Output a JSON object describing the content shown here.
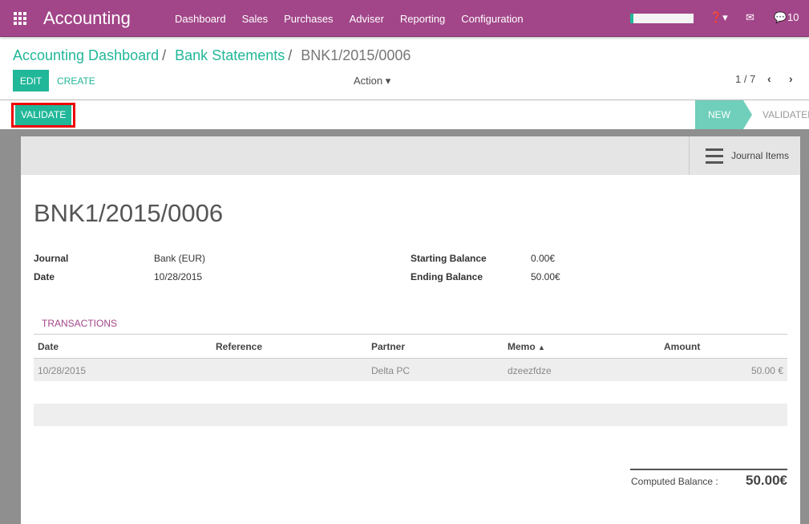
{
  "topbar": {
    "app": "Accounting",
    "menu": [
      "Dashboard",
      "Sales",
      "Purchases",
      "Adviser",
      "Reporting",
      "Configuration"
    ],
    "messages_count": "10",
    "colors": {
      "brand": "#a24689",
      "accent": "#21b799"
    }
  },
  "breadcrumb": {
    "items": [
      "Accounting Dashboard",
      "Bank Statements"
    ],
    "current": "BNK1/2015/0006"
  },
  "toolbar": {
    "edit": "EDIT",
    "create": "CREATE",
    "action": "Action",
    "pager": "1 / 7"
  },
  "statusbar": {
    "validate": "VALIDATE",
    "states": [
      "NEW",
      "VALIDATED"
    ],
    "active_state": "NEW"
  },
  "sheet": {
    "journal_items": "Journal Items",
    "title": "BNK1/2015/0006",
    "fields": {
      "journal_label": "Journal",
      "journal": "Bank (EUR)",
      "date_label": "Date",
      "date": "10/28/2015",
      "start_label": "Starting Balance",
      "start": "0.00€",
      "end_label": "Ending Balance",
      "end": "50.00€"
    },
    "tab": "TRANSACTIONS",
    "columns": [
      "Date",
      "Reference",
      "Partner",
      "Memo",
      "Amount"
    ],
    "rows": [
      {
        "date": "10/28/2015",
        "reference": "",
        "partner": "Delta PC",
        "memo": "dzeezfdze",
        "amount": "50.00 €"
      }
    ],
    "computed_label": "Computed Balance :",
    "computed": "50.00€"
  }
}
